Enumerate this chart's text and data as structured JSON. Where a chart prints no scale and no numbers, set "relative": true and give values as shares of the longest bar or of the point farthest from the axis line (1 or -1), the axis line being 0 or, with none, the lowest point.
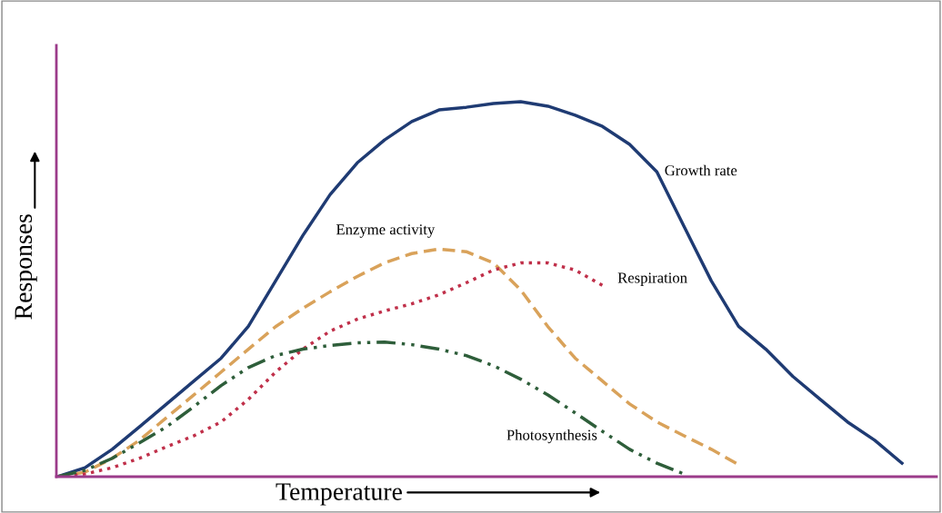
{
  "chart_data": {
    "type": "line",
    "relative": true,
    "xlabel": "Temperature",
    "ylabel": "Responses",
    "legend": false,
    "grid": false,
    "categories": [
      null,
      null,
      null,
      null,
      null,
      null,
      null,
      null,
      null,
      null,
      null,
      null,
      null,
      null,
      null,
      null,
      null,
      null,
      null,
      null,
      null,
      null,
      null,
      null,
      null,
      null,
      null,
      null,
      null,
      null,
      null,
      null,
      null
    ],
    "series": [
      {
        "name": "Growth rate",
        "color": "#1f3b73",
        "line_style": "solid",
        "values": [
          0,
          0.024,
          0.073,
          0.133,
          0.194,
          0.255,
          0.316,
          0.401,
          0.522,
          0.643,
          0.752,
          0.837,
          0.898,
          0.947,
          0.978,
          0.985,
          0.995,
          1,
          0.988,
          0.964,
          0.934,
          0.886,
          0.813,
          0.667,
          0.522,
          0.401,
          0.34,
          0.267,
          0.206,
          0.146,
          0.097,
          0.036,
          null
        ]
      },
      {
        "name": "Enzyme activity",
        "color": "#d9a25a",
        "line_style": "dashed",
        "values": [
          0,
          0.012,
          0.049,
          0.097,
          0.158,
          0.218,
          0.279,
          0.34,
          0.4,
          0.449,
          0.493,
          0.534,
          0.57,
          0.595,
          0.607,
          0.6,
          0.57,
          0.498,
          0.4,
          0.316,
          0.255,
          0.194,
          0.146,
          0.109,
          0.073,
          0.032,
          null,
          null,
          null,
          null,
          null,
          null,
          null
        ]
      },
      {
        "name": "Respiration",
        "color": "#c0304a",
        "line_style": "dotted",
        "values": [
          0,
          0.007,
          0.024,
          0.049,
          0.08,
          0.109,
          0.146,
          0.206,
          0.279,
          0.34,
          0.388,
          0.42,
          0.442,
          0.461,
          0.485,
          0.517,
          0.551,
          0.57,
          0.57,
          0.551,
          0.51,
          null,
          null,
          null,
          null,
          null,
          null,
          null,
          null,
          null,
          null,
          null,
          null
        ]
      },
      {
        "name": "Photosynthesis",
        "color": "#2e5e3a",
        "line_style": "dashdot",
        "values": [
          0,
          0.017,
          0.049,
          0.09,
          0.133,
          0.187,
          0.243,
          0.291,
          0.323,
          0.34,
          0.35,
          0.357,
          0.359,
          0.352,
          0.34,
          0.323,
          0.296,
          0.26,
          0.218,
          0.17,
          0.121,
          0.073,
          0.036,
          0.007,
          null,
          null,
          null,
          null,
          null,
          null,
          null,
          null,
          null
        ]
      }
    ]
  }
}
